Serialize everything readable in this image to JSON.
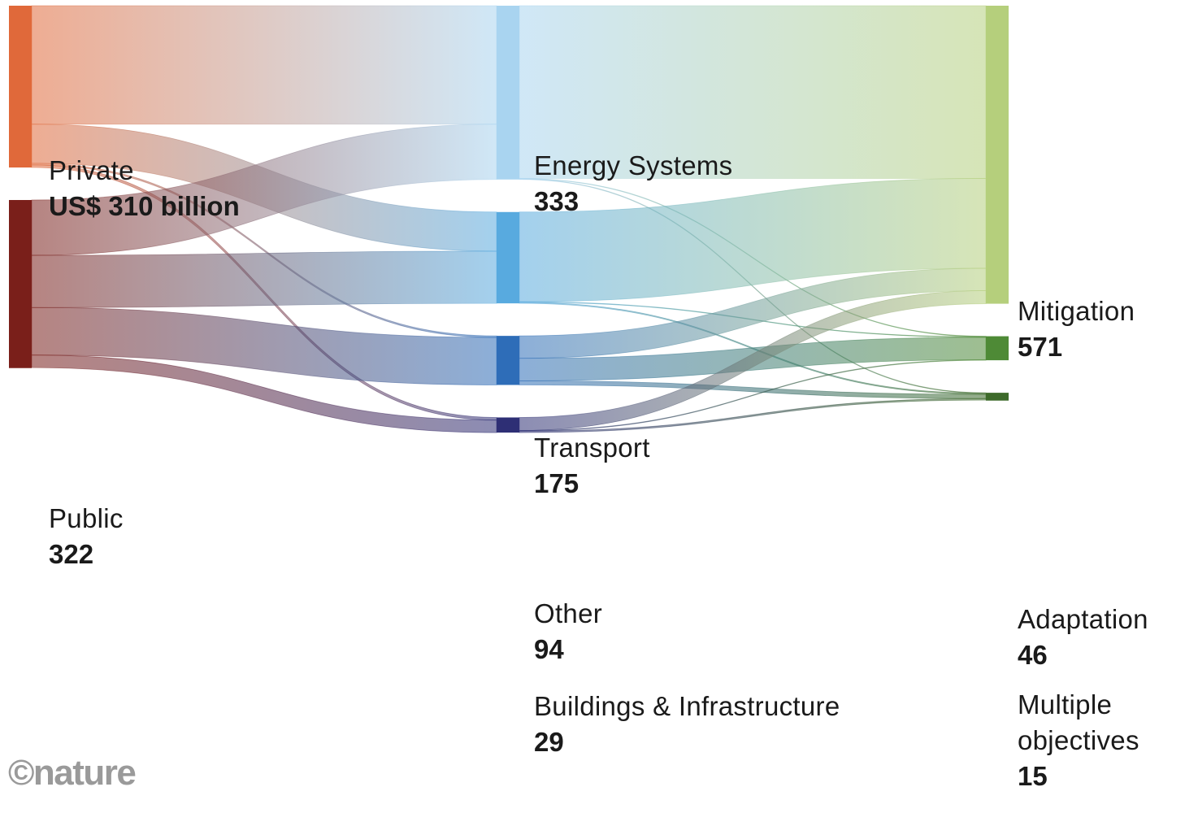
{
  "chart_data": {
    "type": "sankey",
    "title": "",
    "unit": "US$ billion",
    "sources": [
      {
        "id": "private",
        "name": "Private",
        "value_label": "US$ 310 billion",
        "value": 310,
        "color": "#E0693A"
      },
      {
        "id": "public",
        "name": "Public",
        "value_label": "322",
        "value": 322,
        "color": "#7A1F1A"
      }
    ],
    "sectors": [
      {
        "id": "energy",
        "name": "Energy Systems",
        "value_label": "333",
        "value": 333,
        "color": "#A9D4F0"
      },
      {
        "id": "transport",
        "name": "Transport",
        "value_label": "175",
        "value": 175,
        "color": "#58AADF"
      },
      {
        "id": "other",
        "name": "Other",
        "value_label": "94",
        "value": 94,
        "color": "#2E6DB8"
      },
      {
        "id": "buildings",
        "name": "Buildings & Infrastructure",
        "value_label": "29",
        "value": 29,
        "color": "#2E2F75"
      }
    ],
    "objectives": [
      {
        "id": "mitigation",
        "name": "Mitigation",
        "value_label": "571",
        "value": 571,
        "color": "#B5CF7C"
      },
      {
        "id": "adaptation",
        "name": "Adaptation",
        "value_label": "46",
        "value": 46,
        "color": "#4E8A36"
      },
      {
        "id": "multiple",
        "name": "Multiple objectives",
        "value_label": "15",
        "value": 15,
        "color": "#3D6A2A"
      }
    ],
    "flows_source_to_sector": [
      {
        "from": "private",
        "to": "energy",
        "value": 227
      },
      {
        "from": "private",
        "to": "transport",
        "value": 75
      },
      {
        "from": "private",
        "to": "other",
        "value": 3
      },
      {
        "from": "private",
        "to": "buildings",
        "value": 5
      },
      {
        "from": "public",
        "to": "energy",
        "value": 106
      },
      {
        "from": "public",
        "to": "transport",
        "value": 100
      },
      {
        "from": "public",
        "to": "other",
        "value": 91
      },
      {
        "from": "public",
        "to": "buildings",
        "value": 24
      }
    ],
    "flows_sector_to_objective": [
      {
        "from": "energy",
        "to": "mitigation",
        "value": 331
      },
      {
        "from": "energy",
        "to": "adaptation",
        "value": 1
      },
      {
        "from": "energy",
        "to": "multiple",
        "value": 1
      },
      {
        "from": "transport",
        "to": "mitigation",
        "value": 172
      },
      {
        "from": "transport",
        "to": "adaptation",
        "value": 1
      },
      {
        "from": "transport",
        "to": "multiple",
        "value": 2
      },
      {
        "from": "other",
        "to": "mitigation",
        "value": 43
      },
      {
        "from": "other",
        "to": "adaptation",
        "value": 43
      },
      {
        "from": "other",
        "to": "multiple",
        "value": 8
      },
      {
        "from": "buildings",
        "to": "mitigation",
        "value": 25
      },
      {
        "from": "buildings",
        "to": "adaptation",
        "value": 1
      },
      {
        "from": "buildings",
        "to": "multiple",
        "value": 3
      }
    ]
  },
  "watermark": "©nature"
}
